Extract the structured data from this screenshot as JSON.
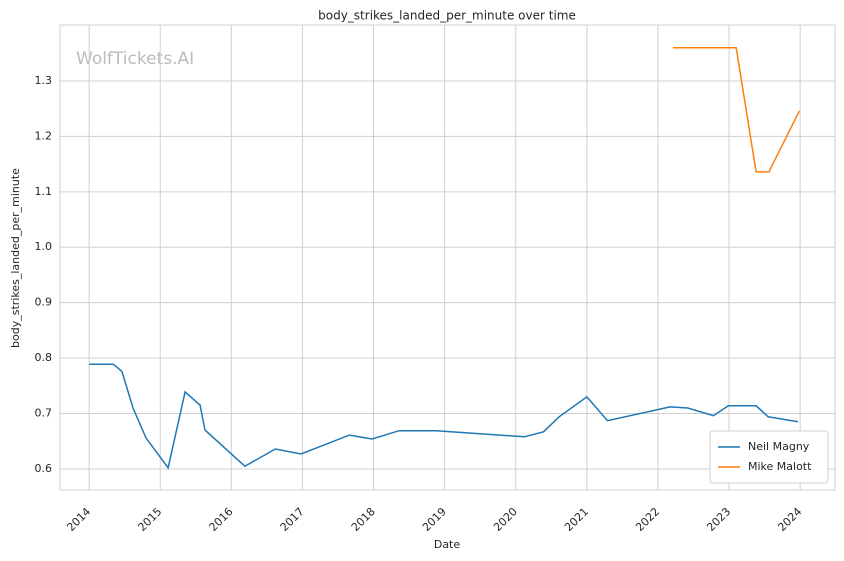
{
  "chart_data": {
    "type": "line",
    "title": "body_strikes_landed_per_minute over time",
    "xlabel": "Date",
    "ylabel": "body_strikes_landed_per_minute",
    "watermark": "WolfTickets.AI",
    "xlim": [
      2013.59,
      2024.49
    ],
    "xticks": [
      2014,
      2015,
      2016,
      2017,
      2018,
      2019,
      2020,
      2021,
      2022,
      2023,
      2024
    ],
    "ylim": [
      0.562,
      1.401
    ],
    "yticks": [
      0.6,
      0.7,
      0.8,
      0.9,
      {
        "value": 1.0,
        "label": "1.0"
      },
      1.1,
      1.2,
      1.3
    ],
    "grid": true,
    "legend": "lower right",
    "series": [
      {
        "name": "Neil Magny",
        "color": "#1f77b4",
        "x": [
          2014.0,
          2014.34,
          2014.46,
          2014.62,
          2014.8,
          2015.11,
          2015.35,
          2015.56,
          2015.63,
          2016.19,
          2016.62,
          2016.98,
          2017.66,
          2017.98,
          2018.36,
          2018.88,
          2020.12,
          2020.39,
          2020.61,
          2021.0,
          2021.29,
          2022.17,
          2022.42,
          2022.78,
          2022.99,
          2023.38,
          2023.55,
          2023.97
        ],
        "values": [
          0.789,
          0.789,
          0.776,
          0.709,
          0.656,
          0.602,
          0.739,
          0.715,
          0.67,
          0.605,
          0.636,
          0.627,
          0.661,
          0.654,
          0.669,
          0.669,
          0.658,
          0.667,
          0.694,
          0.73,
          0.687,
          0.712,
          0.71,
          0.696,
          0.714,
          0.714,
          0.694,
          0.685
        ]
      },
      {
        "name": "Mike Malott",
        "color": "#ff7f0e",
        "x": [
          2022.21,
          2023.1,
          2023.38,
          2023.56,
          2023.99
        ],
        "values": [
          1.36,
          1.36,
          1.136,
          1.136,
          1.246
        ]
      }
    ]
  }
}
